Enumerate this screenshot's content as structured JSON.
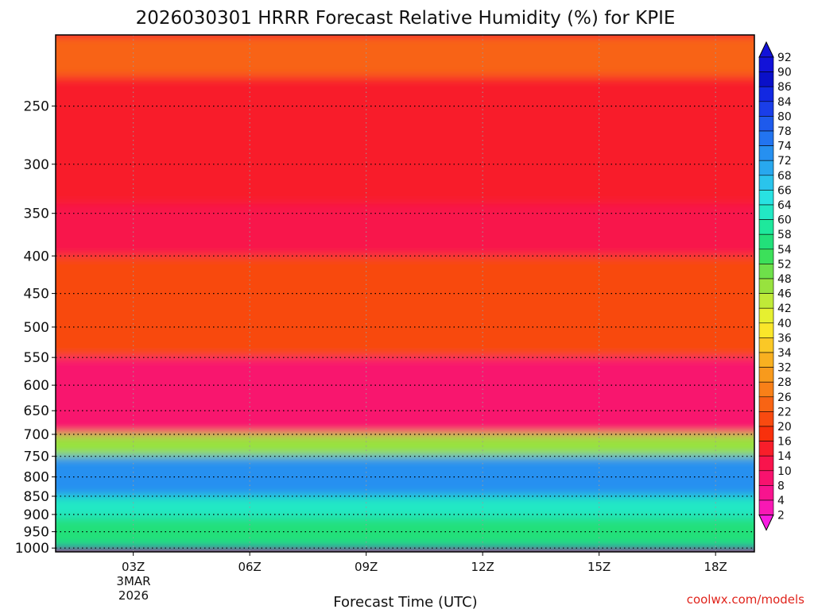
{
  "chart_data": {
    "type": "heatmap",
    "title": "2026030301 HRRR Forecast Relative Humidity (%) for KPIE",
    "xlabel": "Forecast Time (UTC)",
    "ylabel": "",
    "x_ticks": [
      {
        "label": "03Z",
        "hour": 3
      },
      {
        "label": "06Z",
        "hour": 6
      },
      {
        "label": "09Z",
        "hour": 9
      },
      {
        "label": "12Z",
        "hour": 12
      },
      {
        "label": "15Z",
        "hour": 15
      },
      {
        "label": "18Z",
        "hour": 18
      }
    ],
    "x_range_hours": [
      1,
      19
    ],
    "date_label": [
      "3MAR",
      "2026"
    ],
    "y_ticks": [
      250,
      300,
      350,
      400,
      450,
      500,
      550,
      600,
      650,
      700,
      750,
      800,
      850,
      900,
      950,
      1000
    ],
    "y_range_hpa": [
      200,
      1012
    ],
    "y_scale": "log",
    "grid": true,
    "colorbar": {
      "labels": [
        92,
        90,
        86,
        84,
        80,
        78,
        74,
        72,
        68,
        66,
        64,
        60,
        58,
        54,
        52,
        48,
        46,
        42,
        40,
        36,
        34,
        32,
        28,
        26,
        22,
        20,
        16,
        14,
        10,
        8,
        4,
        2
      ],
      "colors": [
        "#1212d8",
        "#0a10c8",
        "#1228e2",
        "#1a3ee8",
        "#1e5aec",
        "#2274f0",
        "#2690f0",
        "#28a8ee",
        "#2ac4ec",
        "#28e2e2",
        "#22e8c4",
        "#1ee89c",
        "#22e07a",
        "#3ce05a",
        "#6ee04a",
        "#98e23e",
        "#c0ea38",
        "#e6f030",
        "#fae62a",
        "#fac826",
        "#f8b020",
        "#f89a1c",
        "#f88018",
        "#f86414",
        "#f84a10",
        "#f8300c",
        "#f81e2a",
        "#f8144c",
        "#f8126e",
        "#f8148e",
        "#f818b4",
        "#f81ce0"
      ],
      "extend": "both"
    },
    "surface_color": "#a0522d",
    "approx_layers": [
      {
        "p_top": 200,
        "p_bottom": 228,
        "rh": 26
      },
      {
        "p_top": 228,
        "p_bottom": 340,
        "rh": 18
      },
      {
        "p_top": 340,
        "p_bottom": 400,
        "rh": 14
      },
      {
        "p_top": 400,
        "p_bottom": 550,
        "rh": 24
      },
      {
        "p_top": 550,
        "p_bottom": 700,
        "rh": 12
      },
      {
        "p_top": 700,
        "p_bottom": 750,
        "rh": 48
      },
      {
        "p_top": 750,
        "p_bottom": 850,
        "rh": 76
      },
      {
        "p_top": 850,
        "p_bottom": 910,
        "rh": 64
      },
      {
        "p_top": 910,
        "p_bottom": 1000,
        "rh": 58
      },
      {
        "p_top": 1000,
        "p_bottom": 1012,
        "rh": 88
      }
    ]
  },
  "credit": "coolwx.com/models"
}
